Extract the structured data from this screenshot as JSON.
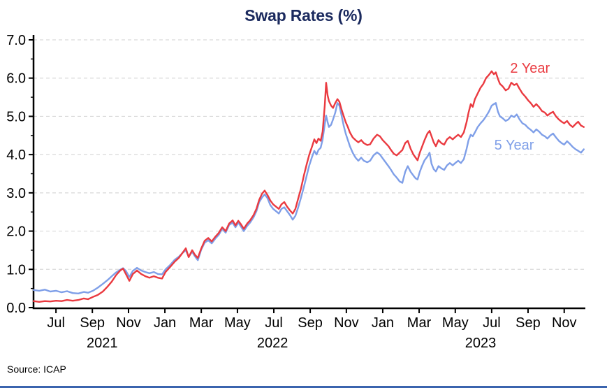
{
  "header": {
    "title": "Swap Rates (%)"
  },
  "footer": {
    "source": "Source: ICAP"
  },
  "colors": {
    "title": "#1b2a5e",
    "two_year": "#ea3a40",
    "five_year": "#7f9fe8",
    "grid": "#d9d9d9",
    "axis": "#000000",
    "accent_bar": "#3b64ae"
  },
  "chart_data": {
    "type": "line",
    "title": "Swap Rates (%)",
    "xlabel": "",
    "ylabel": "",
    "x_domain": [
      2021.397,
      2023.93
    ],
    "y_domain": [
      0,
      7
    ],
    "grid": "horizontal dashed lines at every 1.0",
    "legend_position": "inline labels near line ends",
    "y_ticks": [
      {
        "v": 0,
        "label": "0.0"
      },
      {
        "v": 1,
        "label": "1.0"
      },
      {
        "v": 2,
        "label": "2.0"
      },
      {
        "v": 3,
        "label": "3.0"
      },
      {
        "v": 4,
        "label": "4.0"
      },
      {
        "v": 5,
        "label": "5.0"
      },
      {
        "v": 6,
        "label": "6.0"
      },
      {
        "v": 7,
        "label": "7.0"
      }
    ],
    "y_minor_ticks": [
      0.5,
      1.5,
      2.5,
      3.5,
      4.5,
      5.5,
      6.5
    ],
    "x_ticks": [
      {
        "t": 2021.5,
        "label": "Jul"
      },
      {
        "t": 2021.667,
        "label": "Sep"
      },
      {
        "t": 2021.833,
        "label": "Nov"
      },
      {
        "t": 2022.0,
        "label": "Jan"
      },
      {
        "t": 2022.167,
        "label": "Mar"
      },
      {
        "t": 2022.333,
        "label": "May"
      },
      {
        "t": 2022.5,
        "label": "Jul"
      },
      {
        "t": 2022.667,
        "label": "Sep"
      },
      {
        "t": 2022.833,
        "label": "Nov"
      },
      {
        "t": 2023.0,
        "label": "Jan"
      },
      {
        "t": 2023.167,
        "label": "Mar"
      },
      {
        "t": 2023.333,
        "label": "May"
      },
      {
        "t": 2023.5,
        "label": "Jul"
      },
      {
        "t": 2023.667,
        "label": "Sep"
      },
      {
        "t": 2023.833,
        "label": "Nov"
      }
    ],
    "year_labels": [
      {
        "t": 2021.712,
        "label": "2021"
      },
      {
        "t": 2022.494,
        "label": "2022"
      },
      {
        "t": 2023.449,
        "label": "2023"
      }
    ],
    "x": [
      2021.397,
      2021.423,
      2021.449,
      2021.474,
      2021.5,
      2021.526,
      2021.551,
      2021.577,
      2021.603,
      2021.628,
      2021.647,
      2021.67,
      2021.692,
      2021.715,
      2021.737,
      2021.756,
      2021.776,
      2021.795,
      2021.808,
      2021.821,
      2021.837,
      2021.853,
      2021.872,
      2021.891,
      2021.91,
      2021.929,
      2021.949,
      2021.968,
      2021.987,
      2022.003,
      2022.022,
      2022.045,
      2022.064,
      2022.083,
      2022.096,
      2022.109,
      2022.125,
      2022.138,
      2022.151,
      2022.167,
      2022.183,
      2022.199,
      2022.215,
      2022.231,
      2022.247,
      2022.263,
      2022.279,
      2022.295,
      2022.311,
      2022.324,
      2022.337,
      2022.349,
      2022.362,
      2022.378,
      2022.391,
      2022.407,
      2022.42,
      2022.433,
      2022.446,
      2022.458,
      2022.471,
      2022.484,
      2022.497,
      2022.51,
      2022.523,
      2022.535,
      2022.548,
      2022.561,
      2022.574,
      2022.587,
      2022.599,
      2022.612,
      2022.625,
      2022.638,
      2022.651,
      2022.663,
      2022.676,
      2022.686,
      2022.696,
      2022.705,
      2022.715,
      2022.724,
      2022.734,
      2022.74,
      2022.747,
      2022.753,
      2022.763,
      2022.772,
      2022.782,
      2022.792,
      2022.801,
      2022.811,
      2022.821,
      2022.83,
      2022.84,
      2022.849,
      2022.862,
      2022.875,
      2022.888,
      2022.901,
      2022.913,
      2022.929,
      2022.942,
      2022.958,
      2022.974,
      2022.987,
      2023.0,
      2023.013,
      2023.026,
      2023.038,
      2023.051,
      2023.064,
      2023.077,
      2023.09,
      2023.103,
      2023.115,
      2023.128,
      2023.141,
      2023.151,
      2023.16,
      2023.17,
      2023.18,
      2023.192,
      2023.205,
      2023.215,
      2023.224,
      2023.234,
      2023.244,
      2023.256,
      2023.269,
      2023.282,
      2023.295,
      2023.308,
      2023.321,
      2023.333,
      2023.346,
      2023.359,
      2023.372,
      2023.385,
      2023.394,
      2023.404,
      2023.413,
      2023.423,
      2023.436,
      2023.449,
      2023.462,
      2023.474,
      2023.487,
      2023.5,
      2023.51,
      2023.519,
      2023.529,
      2023.538,
      2023.551,
      2023.564,
      2023.577,
      2023.59,
      2023.603,
      2023.615,
      2023.628,
      2023.641,
      2023.654,
      2023.667,
      2023.679,
      2023.692,
      2023.705,
      2023.718,
      2023.731,
      2023.744,
      2023.756,
      2023.769,
      2023.782,
      2023.795,
      2023.808,
      2023.821,
      2023.833,
      2023.846,
      2023.859,
      2023.872,
      2023.885,
      2023.897,
      2023.91,
      2023.923
    ],
    "series": [
      {
        "name": "2 Year",
        "color": "#ea3a40",
        "label_anchor": {
          "t": 2023.676,
          "v": 6.27
        },
        "values": [
          0.17,
          0.15,
          0.17,
          0.16,
          0.18,
          0.17,
          0.2,
          0.18,
          0.2,
          0.24,
          0.22,
          0.28,
          0.33,
          0.42,
          0.55,
          0.68,
          0.85,
          0.97,
          1.02,
          0.88,
          0.7,
          0.88,
          0.97,
          0.88,
          0.82,
          0.78,
          0.82,
          0.78,
          0.76,
          0.93,
          1.05,
          1.2,
          1.3,
          1.45,
          1.55,
          1.32,
          1.5,
          1.38,
          1.3,
          1.55,
          1.75,
          1.82,
          1.73,
          1.85,
          1.95,
          2.1,
          2.0,
          2.2,
          2.28,
          2.15,
          2.27,
          2.18,
          2.06,
          2.2,
          2.28,
          2.42,
          2.58,
          2.82,
          2.98,
          3.06,
          2.94,
          2.8,
          2.7,
          2.64,
          2.58,
          2.7,
          2.76,
          2.64,
          2.54,
          2.46,
          2.58,
          2.85,
          3.12,
          3.45,
          3.75,
          4.0,
          4.22,
          4.4,
          4.3,
          4.42,
          4.36,
          4.6,
          5.3,
          5.88,
          5.55,
          5.4,
          5.28,
          5.22,
          5.35,
          5.45,
          5.38,
          5.18,
          5.0,
          4.85,
          4.72,
          4.58,
          4.45,
          4.38,
          4.32,
          4.38,
          4.3,
          4.25,
          4.27,
          4.42,
          4.52,
          4.48,
          4.38,
          4.3,
          4.22,
          4.12,
          4.02,
          3.98,
          4.05,
          4.12,
          4.3,
          4.36,
          4.15,
          4.0,
          3.92,
          3.85,
          4.05,
          4.2,
          4.38,
          4.55,
          4.62,
          4.48,
          4.32,
          4.22,
          4.38,
          4.3,
          4.26,
          4.4,
          4.46,
          4.4,
          4.46,
          4.52,
          4.46,
          4.58,
          4.85,
          5.1,
          5.32,
          5.25,
          5.45,
          5.6,
          5.75,
          5.85,
          6.0,
          6.08,
          6.18,
          6.1,
          6.15,
          5.98,
          5.85,
          5.78,
          5.68,
          5.72,
          5.88,
          5.82,
          5.85,
          5.72,
          5.6,
          5.52,
          5.42,
          5.35,
          5.25,
          5.32,
          5.24,
          5.14,
          5.1,
          5.02,
          5.08,
          5.12,
          5.0,
          4.92,
          4.86,
          4.82,
          4.88,
          4.78,
          4.72,
          4.8,
          4.86,
          4.76,
          4.72
        ]
      },
      {
        "name": "5 Year",
        "color": "#7f9fe8",
        "label_anchor": {
          "t": 2023.603,
          "v": 4.26
        },
        "values": [
          0.46,
          0.44,
          0.47,
          0.42,
          0.44,
          0.4,
          0.43,
          0.38,
          0.37,
          0.41,
          0.39,
          0.44,
          0.52,
          0.62,
          0.72,
          0.82,
          0.92,
          0.99,
          1.03,
          0.96,
          0.8,
          0.96,
          1.04,
          0.97,
          0.93,
          0.9,
          0.93,
          0.88,
          0.87,
          1.0,
          1.1,
          1.25,
          1.33,
          1.44,
          1.5,
          1.33,
          1.46,
          1.34,
          1.24,
          1.52,
          1.7,
          1.76,
          1.68,
          1.8,
          1.9,
          2.06,
          1.96,
          2.16,
          2.22,
          2.1,
          2.22,
          2.12,
          2.0,
          2.14,
          2.22,
          2.36,
          2.52,
          2.76,
          2.88,
          2.96,
          2.86,
          2.68,
          2.58,
          2.52,
          2.46,
          2.58,
          2.62,
          2.52,
          2.42,
          2.3,
          2.4,
          2.62,
          2.88,
          3.15,
          3.45,
          3.72,
          3.95,
          4.1,
          4.0,
          4.12,
          4.18,
          4.4,
          4.8,
          5.02,
          4.85,
          4.72,
          4.78,
          4.92,
          5.1,
          5.35,
          5.28,
          5.02,
          4.75,
          4.55,
          4.38,
          4.22,
          4.05,
          3.92,
          3.84,
          3.92,
          3.84,
          3.8,
          3.84,
          3.98,
          4.06,
          4.0,
          3.9,
          3.8,
          3.7,
          3.6,
          3.48,
          3.4,
          3.3,
          3.26,
          3.55,
          3.7,
          3.55,
          3.45,
          3.38,
          3.35,
          3.55,
          3.7,
          3.85,
          3.95,
          4.05,
          3.76,
          3.62,
          3.56,
          3.7,
          3.64,
          3.6,
          3.72,
          3.78,
          3.72,
          3.78,
          3.84,
          3.78,
          3.88,
          4.15,
          4.38,
          4.52,
          4.48,
          4.58,
          4.72,
          4.82,
          4.9,
          5.0,
          5.12,
          5.28,
          5.32,
          5.35,
          5.12,
          5.0,
          4.95,
          4.88,
          4.92,
          5.02,
          4.98,
          5.05,
          4.92,
          4.82,
          4.78,
          4.7,
          4.65,
          4.58,
          4.66,
          4.6,
          4.52,
          4.48,
          4.42,
          4.5,
          4.55,
          4.45,
          4.36,
          4.3,
          4.26,
          4.35,
          4.28,
          4.2,
          4.14,
          4.1,
          4.05,
          4.14
        ]
      }
    ]
  }
}
